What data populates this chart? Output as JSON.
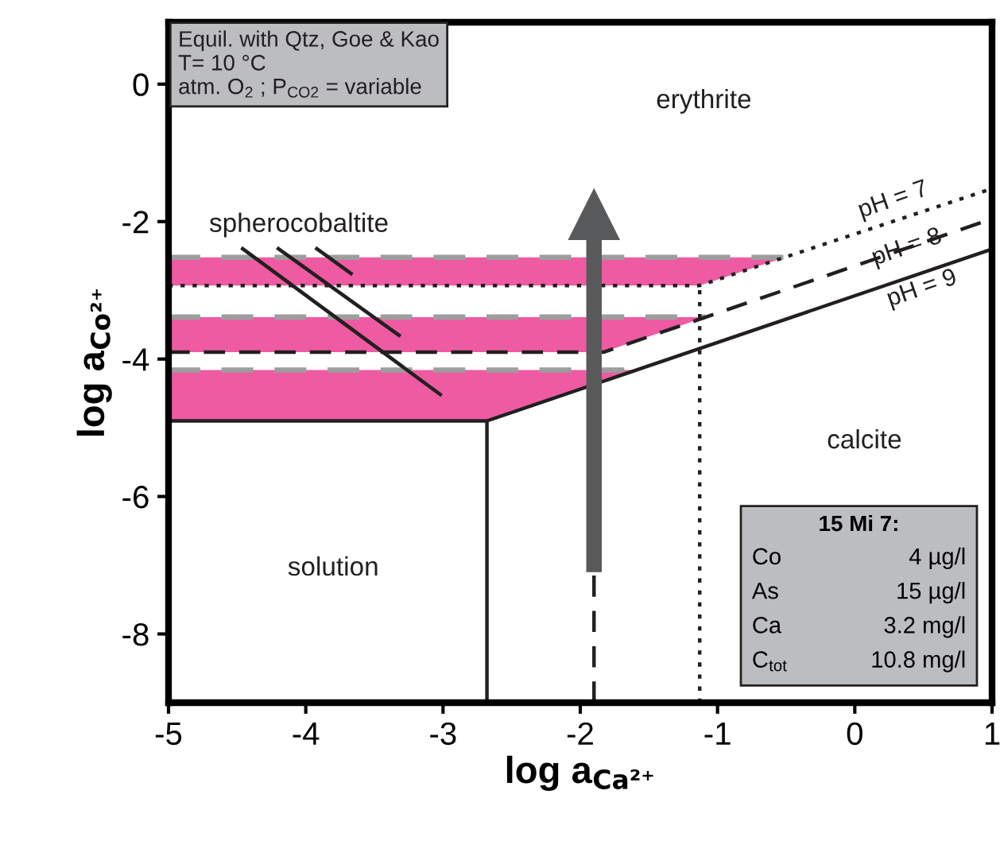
{
  "chart_data": {
    "type": "line",
    "xlabel": "log a$_{Ca²⁺}$",
    "ylabel": "log a$_{Co²⁺}$",
    "xlim": [
      -5,
      1
    ],
    "ylim": [
      -9,
      0.9
    ],
    "xticks": [
      -5,
      -4,
      -3,
      -2,
      -1,
      0,
      1
    ],
    "yticks": [
      0,
      -2,
      -4,
      -6,
      -8
    ],
    "series": [
      {
        "color": "#9d9d9d",
        "line_style": "dashed",
        "x": [
          -5,
          -1.13,
          -0.51
        ],
        "values": [
          -2.52,
          -2.52,
          -2.52
        ],
        "lower": [
          -2.93,
          -2.93,
          -2.52
        ],
        "upper": [
          -2.52,
          -2.52,
          -2.52
        ]
      },
      {
        "color": "#9d9d9d",
        "line_style": "dashed",
        "x": [
          -5,
          -1.83,
          -1.09
        ],
        "values": [
          -3.39,
          -3.39,
          -3.39
        ],
        "lower": [
          -3.9,
          -3.9,
          -3.39
        ],
        "upper": [
          -3.39,
          -3.39,
          -3.39
        ]
      },
      {
        "color": "#9d9d9d",
        "line_style": "dashed",
        "x": [
          -5,
          -2.68,
          -1.59
        ],
        "values": [
          -4.16,
          -4.16,
          -4.16
        ],
        "lower": [
          -4.9,
          -4.9,
          -4.16
        ],
        "upper": [
          -4.16,
          -4.16,
          -4.16
        ]
      },
      {
        "color": "#231f20",
        "line_style": "solid",
        "x": [
          -5,
          -2.68,
          -2.68
        ],
        "values": [
          -4.9,
          -4.9,
          -9
        ]
      },
      {
        "color": "#231f20",
        "line_style": "solid",
        "x": [
          -2.68,
          1
        ],
        "values": [
          -4.9,
          -2.4
        ]
      },
      {
        "color": "#231f20",
        "line_style": "dashed",
        "x": [
          -5,
          -1.83,
          1
        ],
        "values": [
          -3.9,
          -3.9,
          -1.96
        ]
      },
      {
        "color": "#231f20",
        "line_style": "dotted",
        "x": [
          -5,
          -1.13,
          1
        ],
        "values": [
          -2.93,
          -2.93,
          -1.52
        ]
      },
      {
        "color": "#231f20",
        "line_style": "dotted",
        "x": [
          -1.13,
          -1.13
        ],
        "values": [
          -9,
          -2.93
        ]
      },
      {
        "color": "#231f20",
        "line_style": "dashed",
        "x": [
          -1.9,
          -1.9
        ],
        "values": [
          -9,
          -7.1
        ]
      },
      {
        "color": "#231f20",
        "line_style": "solid",
        "x": [
          -4.47,
          -3.01
        ],
        "values": [
          -2.38,
          -4.53
        ]
      },
      {
        "color": "#231f20",
        "line_style": "solid",
        "x": [
          -4.21,
          -3.31
        ],
        "values": [
          -2.38,
          -3.67
        ]
      },
      {
        "color": "#231f20",
        "line_style": "solid",
        "x": [
          -3.93,
          -3.66
        ],
        "values": [
          -2.38,
          -2.77
        ]
      },
      {
        "color": "#58595b",
        "line_style": "solid",
        "marker": "triangle",
        "x": [
          -1.9,
          -1.9
        ],
        "values": [
          -7.1,
          -1.9
        ]
      }
    ],
    "annotations": [
      "erythrite",
      "calcite",
      "solution",
      "spherocobaltite",
      "pH = 7",
      "pH = 8",
      "pH = 9",
      "Equil. with Qtz, Goe & Kao\nT= 10 °C\natm. O$_{2}$ ; P$_{CO2}$ = variable",
      "15 Mi 7:",
      "Co",
      "4 µg/l",
      "As",
      "15 µg/l",
      "Ca",
      "3.2 mg/l",
      "C$_{tot}$",
      "10.8 mg/l"
    ]
  }
}
